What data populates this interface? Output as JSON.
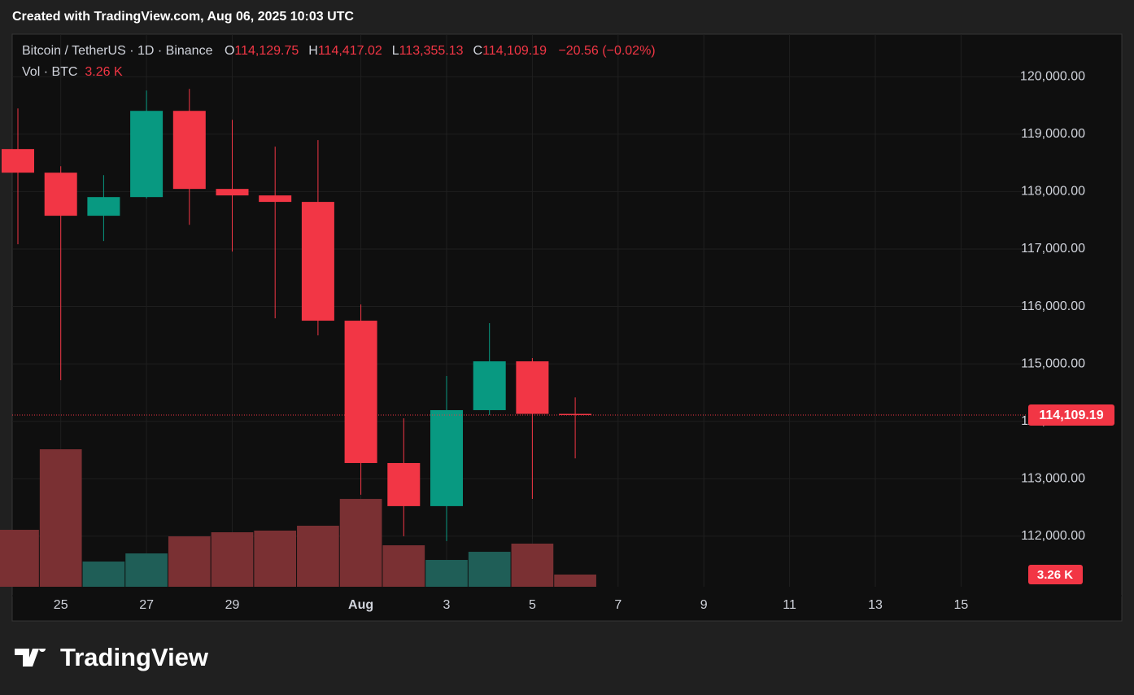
{
  "page": {
    "caption": "Created with TradingView.com, Aug 06, 2025 10:03 UTC",
    "brand": "TradingView"
  },
  "chart_data": {
    "type": "candlestick",
    "header": {
      "symbol": "Bitcoin / TetherUS · 1D · Binance",
      "ohlc": [
        {
          "key": "O",
          "value": "114,129.75"
        },
        {
          "key": "H",
          "value": "114,417.02"
        },
        {
          "key": "L",
          "value": "113,355.13"
        },
        {
          "key": "C",
          "value": "114,109.19"
        }
      ],
      "change": "−20.56 (−0.02%)",
      "volume_title": "Vol · BTC",
      "volume_value": "3.26 K"
    },
    "categories": [
      null,
      "25",
      null,
      "27",
      null,
      "29",
      null,
      null,
      "Aug",
      null,
      "3",
      null,
      "5",
      null,
      "7",
      null,
      "9",
      null,
      "11",
      null,
      "13",
      null,
      "15"
    ],
    "up_color": "#089981",
    "down_color": "#f23645",
    "open": [
      118740,
      118329,
      117579,
      117904,
      119405,
      118046,
      117933,
      117820,
      115752,
      113274,
      112524,
      114195,
      115045,
      114129.75,
      null,
      null,
      null,
      null,
      null,
      null,
      null,
      null,
      null
    ],
    "high": [
      119448,
      118442,
      118286,
      119759,
      119788,
      119249,
      118782,
      118896,
      116035,
      114053,
      114789,
      115710,
      115101,
      114417.02,
      null,
      null,
      null,
      null,
      null,
      null,
      null,
      null,
      null
    ],
    "low": [
      117083,
      114717,
      117139,
      117880,
      117422,
      116955,
      115793,
      115496,
      112722,
      112000,
      111915,
      114110,
      112651,
      113355.13,
      null,
      null,
      null,
      null,
      null,
      null,
      null,
      null,
      null
    ],
    "close": [
      118329,
      117579,
      117904,
      119405,
      118046,
      117933,
      117820,
      115752,
      113274,
      112524,
      114195,
      115045,
      114130,
      114109.19,
      null,
      null,
      null,
      null,
      null,
      null,
      null,
      null,
      null
    ],
    "last_price_label": "114,109.19",
    "volume": {
      "axis": "y2",
      "up_color": "#1f5e57",
      "down_color": "#7a3033",
      "values": [
        15213,
        36730,
        6737,
        8910,
        13470,
        14560,
        15000,
        16300,
        23470,
        11080,
        7170,
        9340,
        11520,
        3260,
        null,
        null,
        null,
        null,
        null,
        null,
        null,
        null,
        null
      ],
      "last_label": "3.26 K"
    },
    "ylim": [
      111120,
      120740
    ],
    "yticks": [
      {
        "value": 112000,
        "label": "112,000.00"
      },
      {
        "value": 113000,
        "label": "113,000.00"
      },
      {
        "value": 114000,
        "label": "114,000.00"
      },
      {
        "value": 115000,
        "label": "115,000.00"
      },
      {
        "value": 116000,
        "label": "116,000.00"
      },
      {
        "value": 117000,
        "label": "117,000.00"
      },
      {
        "value": 118000,
        "label": "118,000.00"
      },
      {
        "value": 119000,
        "label": "119,000.00"
      },
      {
        "value": 120000,
        "label": "120,000.00"
      }
    ],
    "y2lim": [
      0,
      147600
    ],
    "grid": true
  }
}
